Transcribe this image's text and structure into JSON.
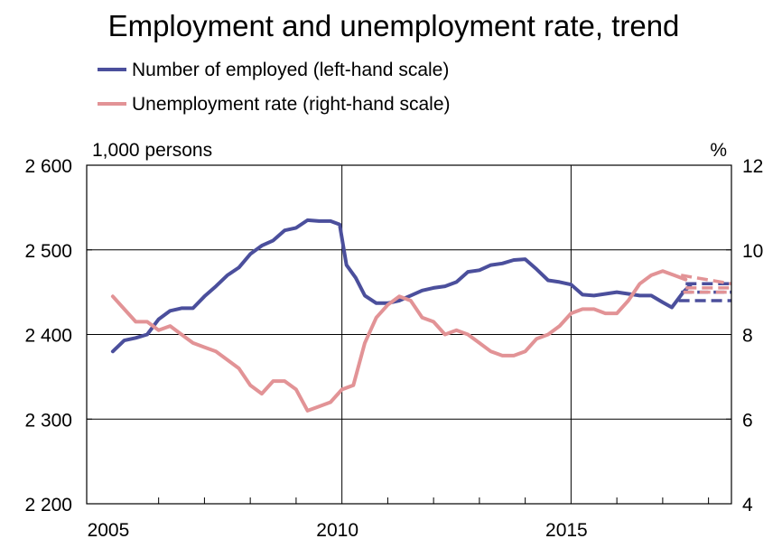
{
  "chart_data": {
    "type": "line",
    "title": "Employment and unemployment rate, trend",
    "left_axis": {
      "unit_label": "1,000 persons",
      "ylim": [
        2200,
        2600
      ],
      "ticks": [
        2200,
        2300,
        2400,
        2500,
        2600
      ],
      "tick_labels": [
        "2 200",
        "2 300",
        "2 400",
        "2 500",
        "2 600"
      ]
    },
    "right_axis": {
      "unit_label": "%",
      "ylim": [
        4,
        12
      ],
      "ticks": [
        4,
        6,
        8,
        10,
        12
      ],
      "tick_labels": [
        "4",
        "6",
        "8",
        "10",
        "12"
      ]
    },
    "x_axis": {
      "range": [
        2005,
        2018.5
      ],
      "tick_labels": [
        {
          "x": 2005,
          "label": "2005"
        },
        {
          "x": 2010,
          "label": "2010"
        },
        {
          "x": 2015,
          "label": "2015"
        }
      ],
      "minor_ticks": [
        2006,
        2007,
        2008,
        2009,
        2011,
        2012,
        2013,
        2014,
        2016,
        2017,
        2018
      ]
    },
    "vertical_gridlines": [
      2010,
      2015
    ],
    "horizontal_gridlines": true,
    "legend_position": "top-left",
    "series": [
      {
        "name": "Number of employed (left-hand scale)",
        "axis": "left",
        "color": "#4b4f9c",
        "values": [
          [
            2005.0,
            2380
          ],
          [
            2005.25,
            2393
          ],
          [
            2005.5,
            2396
          ],
          [
            2005.75,
            2400
          ],
          [
            2006.0,
            2418
          ],
          [
            2006.25,
            2428
          ],
          [
            2006.5,
            2431
          ],
          [
            2006.75,
            2431
          ],
          [
            2007.0,
            2445
          ],
          [
            2007.25,
            2457
          ],
          [
            2007.5,
            2470
          ],
          [
            2007.75,
            2479
          ],
          [
            2008.0,
            2495
          ],
          [
            2008.25,
            2505
          ],
          [
            2008.5,
            2511
          ],
          [
            2008.75,
            2523
          ],
          [
            2009.0,
            2526
          ],
          [
            2009.25,
            2535
          ],
          [
            2009.5,
            2534
          ],
          [
            2009.75,
            2534
          ],
          [
            2009.95,
            2530
          ],
          [
            2010.1,
            2482
          ],
          [
            2010.3,
            2467
          ],
          [
            2010.5,
            2446
          ],
          [
            2010.75,
            2437
          ],
          [
            2011.0,
            2437
          ],
          [
            2011.25,
            2440
          ],
          [
            2011.5,
            2446
          ],
          [
            2011.75,
            2452
          ],
          [
            2012.0,
            2455
          ],
          [
            2012.25,
            2457
          ],
          [
            2012.5,
            2462
          ],
          [
            2012.75,
            2474
          ],
          [
            2013.0,
            2476
          ],
          [
            2013.25,
            2482
          ],
          [
            2013.5,
            2484
          ],
          [
            2013.75,
            2488
          ],
          [
            2014.0,
            2489
          ],
          [
            2014.25,
            2477
          ],
          [
            2014.5,
            2464
          ],
          [
            2014.75,
            2462
          ],
          [
            2015.0,
            2459
          ],
          [
            2015.25,
            2447
          ],
          [
            2015.5,
            2446
          ],
          [
            2015.75,
            2448
          ],
          [
            2016.0,
            2450
          ],
          [
            2016.25,
            2448
          ],
          [
            2016.5,
            2446
          ],
          [
            2016.75,
            2446
          ],
          [
            2017.0,
            2438
          ],
          [
            2017.2,
            2432
          ],
          [
            2017.45,
            2450
          ],
          [
            2017.6,
            2458
          ]
        ],
        "forecast": [
          {
            "name": "lower",
            "values": [
              [
                2017.35,
                2440
              ],
              [
                2018.5,
                2440
              ]
            ]
          },
          {
            "name": "middle",
            "values": [
              [
                2017.4,
                2450
              ],
              [
                2018.5,
                2450
              ]
            ]
          },
          {
            "name": "upper",
            "values": [
              [
                2017.5,
                2460
              ],
              [
                2018.5,
                2460
              ]
            ]
          }
        ]
      },
      {
        "name": "Unemployment rate (right-hand scale)",
        "axis": "right",
        "color": "#e29396",
        "values": [
          [
            2005.0,
            8.9
          ],
          [
            2005.25,
            8.6
          ],
          [
            2005.5,
            8.3
          ],
          [
            2005.75,
            8.3
          ],
          [
            2006.0,
            8.1
          ],
          [
            2006.25,
            8.2
          ],
          [
            2006.5,
            8.0
          ],
          [
            2006.75,
            7.8
          ],
          [
            2007.0,
            7.7
          ],
          [
            2007.25,
            7.6
          ],
          [
            2007.5,
            7.4
          ],
          [
            2007.75,
            7.2
          ],
          [
            2008.0,
            6.8
          ],
          [
            2008.25,
            6.6
          ],
          [
            2008.5,
            6.9
          ],
          [
            2008.75,
            6.9
          ],
          [
            2009.0,
            6.7
          ],
          [
            2009.25,
            6.2
          ],
          [
            2009.5,
            6.3
          ],
          [
            2009.75,
            6.4
          ],
          [
            2010.0,
            6.7
          ],
          [
            2010.25,
            6.8
          ],
          [
            2010.5,
            7.8
          ],
          [
            2010.75,
            8.4
          ],
          [
            2011.0,
            8.7
          ],
          [
            2011.25,
            8.9
          ],
          [
            2011.5,
            8.8
          ],
          [
            2011.75,
            8.4
          ],
          [
            2012.0,
            8.3
          ],
          [
            2012.25,
            8.0
          ],
          [
            2012.5,
            8.1
          ],
          [
            2012.75,
            8.0
          ],
          [
            2013.0,
            7.8
          ],
          [
            2013.25,
            7.6
          ],
          [
            2013.5,
            7.5
          ],
          [
            2013.75,
            7.5
          ],
          [
            2014.0,
            7.6
          ],
          [
            2014.25,
            7.9
          ],
          [
            2014.5,
            8.0
          ],
          [
            2014.75,
            8.2
          ],
          [
            2015.0,
            8.5
          ],
          [
            2015.25,
            8.6
          ],
          [
            2015.5,
            8.6
          ],
          [
            2015.75,
            8.5
          ],
          [
            2016.0,
            8.5
          ],
          [
            2016.25,
            8.8
          ],
          [
            2016.5,
            9.2
          ],
          [
            2016.75,
            9.4
          ],
          [
            2017.0,
            9.5
          ],
          [
            2017.25,
            9.4
          ],
          [
            2017.5,
            9.3
          ]
        ],
        "forecast": [
          {
            "name": "upper",
            "values": [
              [
                2017.4,
                9.4
              ],
              [
                2018.5,
                9.2
              ]
            ]
          },
          {
            "name": "middle",
            "values": [
              [
                2017.5,
                9.1
              ],
              [
                2018.5,
                9.1
              ]
            ]
          },
          {
            "name": "lower",
            "values": [
              [
                2017.45,
                9.0
              ],
              [
                2018.5,
                9.0
              ]
            ]
          }
        ]
      }
    ]
  }
}
